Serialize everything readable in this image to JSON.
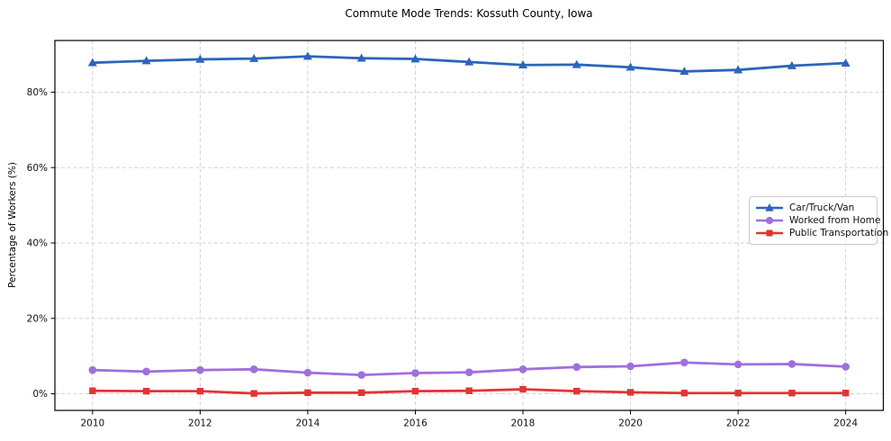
{
  "chart_data": {
    "type": "line",
    "title": "Commute Mode Trends: Kossuth County, Iowa",
    "xlabel": "",
    "ylabel": "Percentage of Workers (%)",
    "x": [
      2010,
      2011,
      2012,
      2013,
      2014,
      2015,
      2016,
      2017,
      2018,
      2019,
      2020,
      2021,
      2022,
      2023,
      2024
    ],
    "xlim": [
      2009.3,
      2024.7
    ],
    "ylim": [
      -4.4,
      93.7
    ],
    "grid": true,
    "grid_color": "#cccccc",
    "axis_color": "#000000",
    "background": "#ffffff",
    "legend_position": "center-right",
    "x_ticks": [
      {
        "value": 2010,
        "label": "2010"
      },
      {
        "value": 2012,
        "label": "2012"
      },
      {
        "value": 2014,
        "label": "2014"
      },
      {
        "value": 2016,
        "label": "2016"
      },
      {
        "value": 2018,
        "label": "2018"
      },
      {
        "value": 2020,
        "label": "2020"
      },
      {
        "value": 2022,
        "label": "2022"
      },
      {
        "value": 2024,
        "label": "2024"
      }
    ],
    "y_ticks": [
      {
        "value": 0,
        "label": "0%"
      },
      {
        "value": 20,
        "label": "20%"
      },
      {
        "value": 40,
        "label": "40%"
      },
      {
        "value": 60,
        "label": "60%"
      },
      {
        "value": 80,
        "label": "80%"
      }
    ],
    "series": [
      {
        "name": "Car/Truck/Van",
        "color": "#2b65bb",
        "marker": "triangle",
        "values": [
          87.8,
          88.3,
          88.7,
          88.9,
          89.5,
          89.0,
          88.8,
          88.0,
          87.2,
          87.3,
          86.6,
          85.5,
          85.9,
          87.0,
          87.7
        ]
      },
      {
        "name": "Worked from Home",
        "color": "#a06fdc",
        "marker": "circle",
        "values": [
          6.3,
          5.9,
          6.3,
          6.5,
          5.6,
          5.0,
          5.5,
          5.7,
          6.5,
          7.1,
          7.3,
          8.3,
          7.8,
          7.9,
          7.2
        ]
      },
      {
        "name": "Public Transportation",
        "color": "#e13434",
        "marker": "square",
        "values": [
          0.8,
          0.7,
          0.7,
          0.1,
          0.3,
          0.3,
          0.7,
          0.8,
          1.2,
          0.7,
          0.4,
          0.2,
          0.2,
          0.2,
          0.2
        ]
      }
    ]
  }
}
